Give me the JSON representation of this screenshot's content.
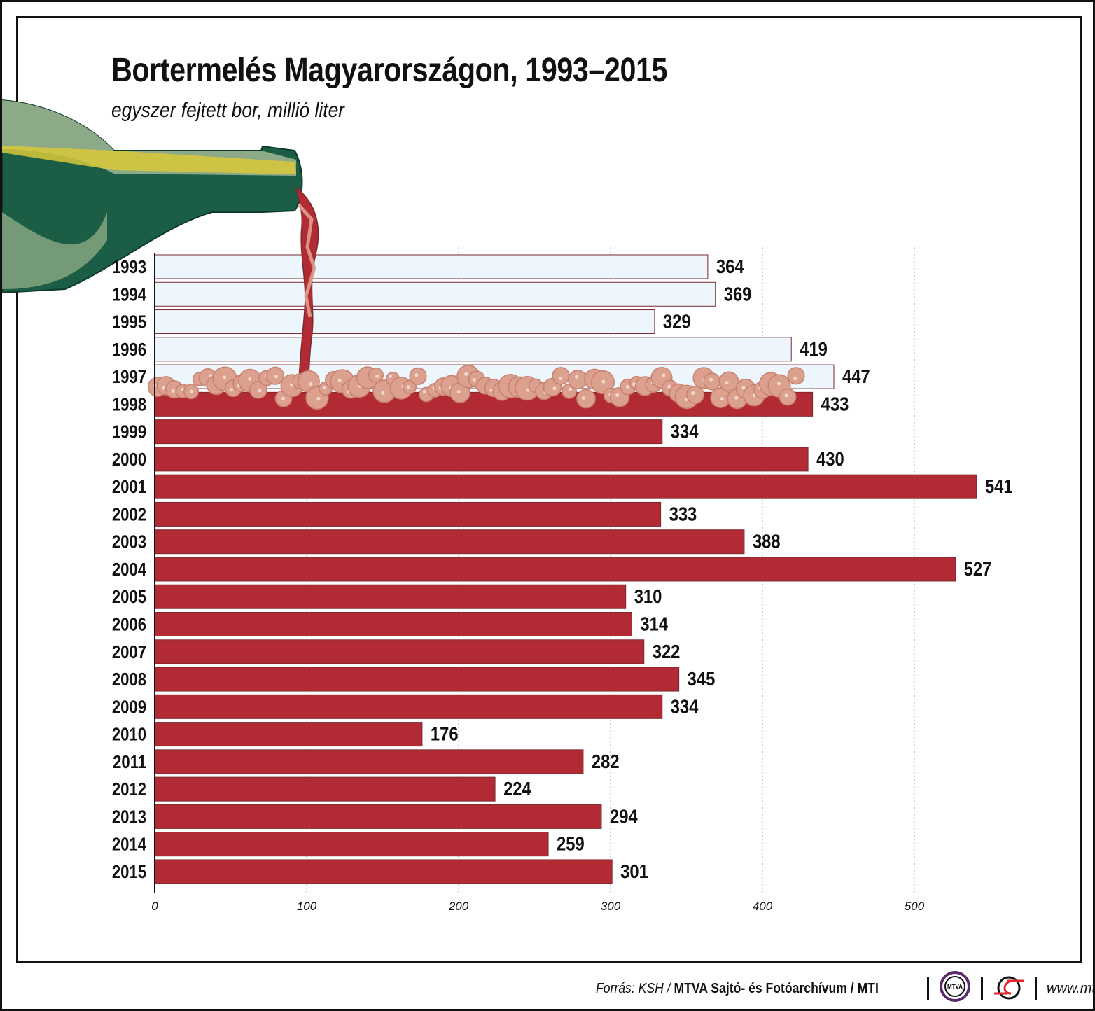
{
  "chart_data": {
    "type": "bar",
    "orientation": "horizontal",
    "title": "Bortermelés Magyarországon, 1993–2015",
    "subtitle": "egyszer fejtett bor, millió liter",
    "categories": [
      "1993",
      "1994",
      "1995",
      "1996",
      "1997",
      "1998",
      "1999",
      "2000",
      "2001",
      "2002",
      "2003",
      "2004",
      "2005",
      "2006",
      "2007",
      "2008",
      "2009",
      "2010",
      "2011",
      "2012",
      "2013",
      "2014",
      "2015"
    ],
    "values": [
      364,
      369,
      329,
      419,
      447,
      433,
      334,
      430,
      541,
      333,
      388,
      527,
      310,
      314,
      322,
      345,
      334,
      176,
      282,
      224,
      294,
      259,
      301
    ],
    "xlim": [
      0,
      560
    ],
    "xticks": [
      0,
      100,
      200,
      300,
      400,
      500
    ],
    "grid": "vertical dotted",
    "colors": {
      "bar": "#b22a33",
      "bar_empty": "#eef6fd",
      "bar_border": "#7a2a30",
      "foam": "#dba08e",
      "bottle": "#1c5e45"
    }
  },
  "footer": {
    "source_prefix": "Forrás: KSH / ",
    "source_bold": "MTVA Sajtó- és Fotóarchívum / MTI",
    "logo_mtva": "MTVA",
    "url": "www.mti.hu"
  }
}
